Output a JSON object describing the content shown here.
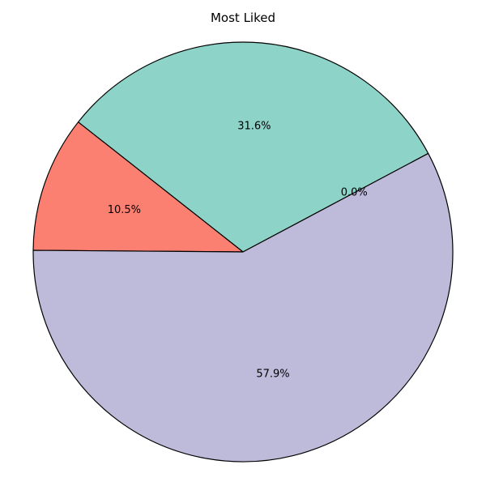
{
  "chart_data": {
    "type": "pie",
    "title": "Most Liked",
    "slices": [
      {
        "value": 0.0,
        "label": "0.0%",
        "color": "#fb8072"
      },
      {
        "value": 31.6,
        "label": "31.6%",
        "color": "#8dd3c7"
      },
      {
        "value": 10.5,
        "label": "10.5%",
        "color": "#fb8072"
      },
      {
        "value": 57.9,
        "label": "57.9%",
        "color": "#bebada"
      }
    ],
    "edge_color": "#000000",
    "direction": "counterclockwise"
  }
}
